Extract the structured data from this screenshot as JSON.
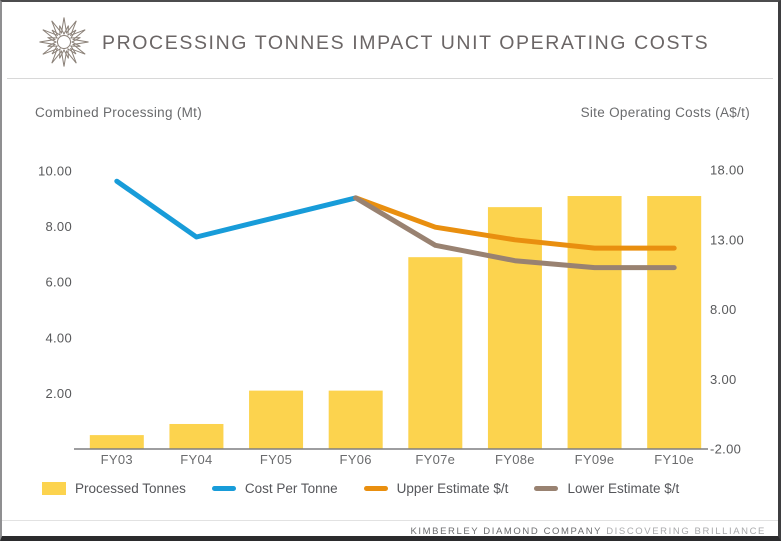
{
  "header": {
    "title": "PROCESSING TONNES IMPACT UNIT OPERATING COSTS"
  },
  "footer": {
    "company": "KIMBERLEY DIAMOND COMPANY",
    "tagline": "DISCOVERING BRILLIANCE"
  },
  "colors": {
    "bar_yellow": "#FCD34E",
    "cost_blue": "#189CD9",
    "upper_orange": "#E98F0F",
    "lower_brown": "#998271",
    "logo_gray": "#8B8178",
    "axis_line_gray": "#7E7E80"
  },
  "chart_data": {
    "type": "bar",
    "title": "PROCESSING TONNES IMPACT UNIT OPERATING COSTS",
    "left_axis_title": "Combined Processing (Mt)",
    "right_axis_title": "Site Operating Costs (A$/t)",
    "categories": [
      "FY03",
      "FY04",
      "FY05",
      "FY06",
      "FY07e",
      "FY08e",
      "FY09e",
      "FY10e"
    ],
    "left_ylim": [
      0,
      10
    ],
    "right_ylim": [
      -2,
      18
    ],
    "grid": false,
    "legend_position": "bottom",
    "left_ticks": {
      "labels": [
        "10.00",
        "8.00",
        "6.00",
        "4.00",
        "2.00"
      ],
      "values": [
        10,
        8,
        6,
        4,
        2
      ]
    },
    "right_ticks": {
      "labels": [
        "18.00",
        "13.00",
        "8.00",
        "3.00",
        "-2.00"
      ],
      "values": [
        18,
        13,
        8,
        3,
        -2
      ]
    },
    "series": [
      {
        "name": "Processed Tonnes",
        "type": "bar",
        "axis": "left",
        "color": "#FCD34E",
        "values": [
          0.5,
          0.9,
          2.1,
          2.1,
          6.9,
          8.7,
          9.1,
          9.1
        ]
      },
      {
        "name": "Cost Per Tonne",
        "type": "line",
        "axis": "right",
        "color": "#189CD9",
        "values": [
          17.2,
          13.2,
          14.6,
          16.0,
          null,
          null,
          null,
          null
        ]
      },
      {
        "name": "Upper Estimate $/t",
        "type": "line",
        "axis": "right",
        "color": "#E98F0F",
        "values": [
          null,
          null,
          null,
          16.0,
          13.9,
          13.0,
          12.4,
          12.4
        ]
      },
      {
        "name": "Lower Estimate $/t",
        "type": "line",
        "axis": "right",
        "color": "#998271",
        "values": [
          null,
          null,
          null,
          16.0,
          12.6,
          11.5,
          11.0,
          11.0
        ]
      }
    ]
  }
}
